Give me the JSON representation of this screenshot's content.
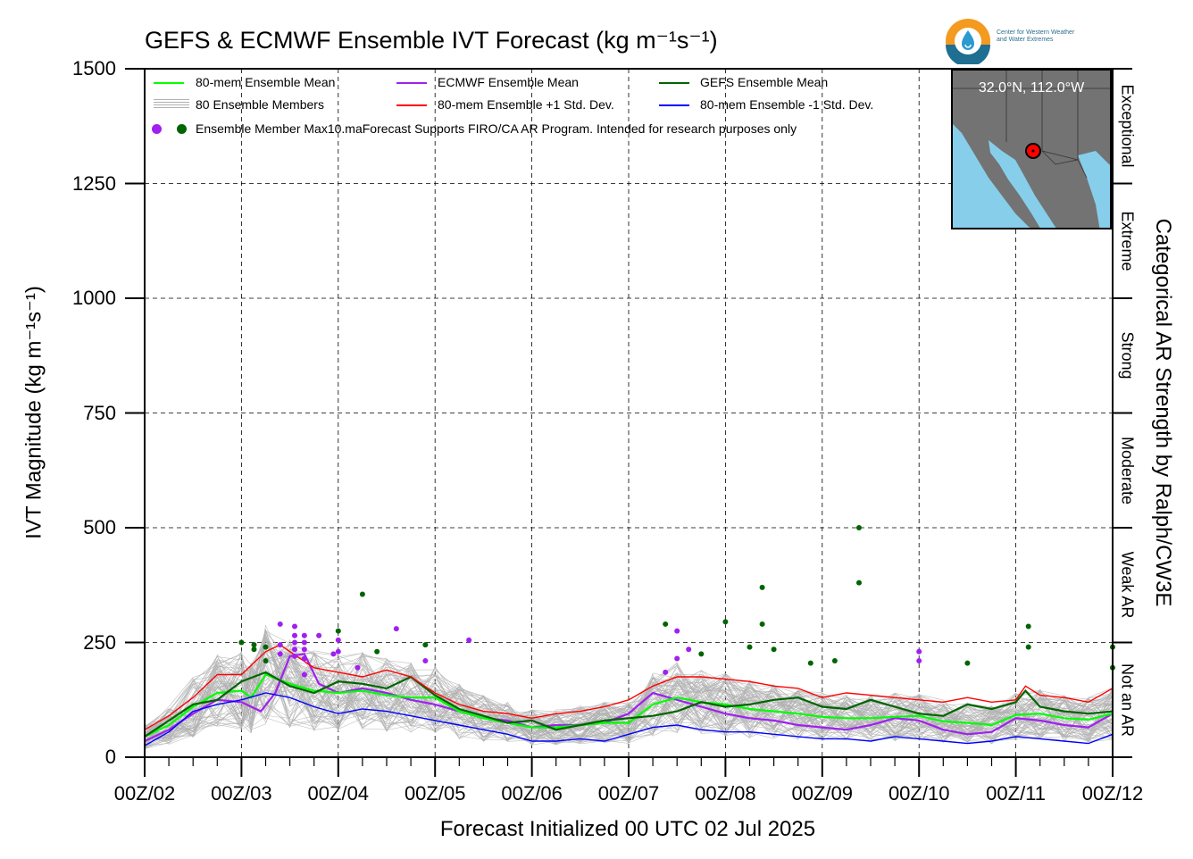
{
  "title": "GEFS & ECMWF Ensemble IVT Forecast (kg m⁻¹s⁻¹)",
  "logo": {
    "icon": "cw3e-water-drop-logo",
    "text_line1": "Center for Western Weather",
    "text_line2": "and Water Extremes"
  },
  "inset_map": {
    "location_label": "32.0°N, 112.0°W",
    "land_color": "#737373",
    "ocean_color": "#87ceeb",
    "marker_color": "#ff0000"
  },
  "legend": {
    "mean80": "80-mem Ensemble Mean",
    "ecmwf": "ECMWF Ensemble Mean",
    "gefs": "GEFS Ensemble Mean",
    "members": "80 Ensemble Members",
    "plus1": "80-mem Ensemble +1 Std. Dev.",
    "minus1": "80-mem Ensemble -1 Std. Dev.",
    "max_label": "Ensemble Member Max",
    "note": "10.maForecast Supports FIRO/CA AR Program. Intended for research purposes only"
  },
  "chart_data": {
    "type": "line",
    "title": "GEFS & ECMWF Ensemble IVT Forecast (kg m⁻¹s⁻¹)",
    "xlabel": "Forecast Initialized 00 UTC 02 Jul 2025",
    "ylabel": "IVT Magnitude (kg m⁻¹s⁻¹)",
    "right_label": "Categorical AR Strength by Ralph/CW3E",
    "ylim": [
      0,
      1500
    ],
    "yticks": [
      0,
      250,
      500,
      750,
      1000,
      1250,
      1500
    ],
    "xlim": [
      0,
      10
    ],
    "xticks": [
      "00Z/02",
      "00Z/03",
      "00Z/04",
      "00Z/05",
      "00Z/06",
      "00Z/07",
      "00Z/08",
      "00Z/09",
      "00Z/10",
      "00Z/11",
      "00Z/12"
    ],
    "grid": true,
    "legend_position": "top-left",
    "categories": [
      {
        "name": "Not an AR",
        "range": [
          0,
          250
        ]
      },
      {
        "name": "Weak AR",
        "range": [
          250,
          500
        ]
      },
      {
        "name": "Moderate",
        "range": [
          500,
          750
        ]
      },
      {
        "name": "Strong",
        "range": [
          750,
          1000
        ]
      },
      {
        "name": "Extreme",
        "range": [
          1000,
          1250
        ]
      },
      {
        "name": "Exceptional",
        "range": [
          1250,
          1500
        ]
      }
    ],
    "series": [
      {
        "name": "80-mem Ensemble Mean",
        "color": "#00ff00",
        "x": [
          0,
          0.25,
          0.5,
          0.75,
          1,
          1.1,
          1.25,
          1.5,
          1.75,
          2,
          2.25,
          2.5,
          2.75,
          3,
          3.25,
          3.5,
          3.75,
          4,
          4.25,
          4.5,
          4.75,
          5,
          5.25,
          5.5,
          5.75,
          6,
          6.25,
          6.5,
          6.75,
          7,
          7.25,
          7.5,
          7.75,
          8,
          8.25,
          8.5,
          8.75,
          9,
          9.25,
          9.5,
          9.75,
          10
        ],
        "y": [
          45,
          70,
          110,
          140,
          145,
          130,
          180,
          160,
          145,
          140,
          145,
          135,
          130,
          130,
          100,
          85,
          75,
          65,
          65,
          70,
          75,
          75,
          115,
          130,
          120,
          115,
          105,
          100,
          95,
          88,
          85,
          85,
          88,
          90,
          78,
          75,
          70,
          92,
          95,
          85,
          82,
          95
        ]
      },
      {
        "name": "ECMWF Ensemble Mean",
        "color": "#a020f0",
        "x": [
          0,
          0.25,
          0.5,
          0.75,
          1,
          1.2,
          1.35,
          1.5,
          1.65,
          1.8,
          2,
          2.25,
          2.5,
          2.75,
          3,
          3.25,
          3.5,
          3.75,
          4,
          4.25,
          4.5,
          4.75,
          5,
          5.25,
          5.5,
          5.75,
          6,
          6.25,
          6.5,
          6.75,
          7,
          7.25,
          7.5,
          7.75,
          8,
          8.25,
          8.5,
          8.75,
          9,
          9.25,
          9.5,
          9.75,
          10
        ],
        "y": [
          35,
          60,
          95,
          125,
          120,
          100,
          140,
          220,
          225,
          160,
          140,
          150,
          140,
          125,
          115,
          100,
          85,
          80,
          65,
          70,
          70,
          75,
          95,
          140,
          125,
          110,
          95,
          85,
          80,
          70,
          65,
          60,
          70,
          85,
          80,
          60,
          50,
          55,
          85,
          80,
          70,
          65,
          95
        ]
      },
      {
        "name": "GEFS Ensemble Mean",
        "color": "#006400",
        "x": [
          0,
          0.25,
          0.5,
          0.75,
          1,
          1.25,
          1.5,
          1.75,
          2,
          2.25,
          2.5,
          2.75,
          3,
          3.25,
          3.5,
          3.75,
          4,
          4.25,
          4.5,
          4.75,
          5,
          5.25,
          5.5,
          5.75,
          6,
          6.25,
          6.5,
          6.75,
          7,
          7.25,
          7.5,
          7.75,
          8,
          8.25,
          8.5,
          8.75,
          9,
          9.1,
          9.25,
          9.5,
          9.75,
          10
        ],
        "y": [
          45,
          80,
          115,
          125,
          165,
          185,
          155,
          140,
          165,
          160,
          150,
          175,
          135,
          105,
          90,
          75,
          80,
          60,
          70,
          80,
          85,
          90,
          100,
          120,
          110,
          115,
          125,
          130,
          110,
          105,
          125,
          110,
          95,
          90,
          115,
          105,
          120,
          145,
          110,
          100,
          95,
          100
        ]
      },
      {
        "name": "80-mem Ensemble +1 Std. Dev.",
        "color": "#ff0000",
        "x": [
          0,
          0.25,
          0.5,
          0.75,
          1,
          1.25,
          1.4,
          1.5,
          1.75,
          2,
          2.25,
          2.5,
          2.75,
          3,
          3.25,
          3.5,
          3.75,
          4,
          4.25,
          4.5,
          4.75,
          5,
          5.25,
          5.5,
          5.75,
          6,
          6.25,
          6.5,
          6.75,
          7,
          7.25,
          7.5,
          7.75,
          8,
          8.25,
          8.5,
          8.75,
          9,
          9.1,
          9.25,
          9.5,
          9.75,
          10
        ],
        "y": [
          60,
          90,
          130,
          180,
          180,
          230,
          245,
          230,
          195,
          185,
          175,
          190,
          175,
          140,
          115,
          100,
          95,
          85,
          95,
          100,
          110,
          125,
          155,
          175,
          175,
          170,
          165,
          155,
          150,
          130,
          140,
          135,
          130,
          125,
          120,
          130,
          120,
          125,
          155,
          135,
          130,
          120,
          150
        ]
      },
      {
        "name": "80-mem Ensemble -1 Std. Dev.",
        "color": "#0000ff",
        "x": [
          0,
          0.25,
          0.5,
          0.75,
          1,
          1.25,
          1.5,
          1.75,
          2,
          2.25,
          2.5,
          2.75,
          3,
          3.25,
          3.5,
          3.75,
          4,
          4.25,
          4.5,
          4.75,
          5,
          5.25,
          5.5,
          5.75,
          6,
          6.25,
          6.5,
          6.75,
          7,
          7.25,
          7.5,
          7.75,
          8,
          8.25,
          8.5,
          8.75,
          9,
          9.25,
          9.5,
          9.75,
          10
        ],
        "y": [
          25,
          55,
          100,
          115,
          125,
          140,
          130,
          110,
          95,
          105,
          100,
          90,
          80,
          70,
          60,
          50,
          35,
          35,
          40,
          35,
          50,
          65,
          70,
          60,
          55,
          55,
          50,
          45,
          40,
          40,
          35,
          45,
          40,
          35,
          30,
          35,
          45,
          40,
          35,
          30,
          50
        ]
      }
    ],
    "member_max": [
      {
        "model": "ECMWF",
        "color": "#a020f0",
        "points": [
          {
            "x": 1.4,
            "y": 290
          },
          {
            "x": 1.4,
            "y": 245
          },
          {
            "x": 1.4,
            "y": 225
          },
          {
            "x": 1.55,
            "y": 285
          },
          {
            "x": 1.55,
            "y": 265
          },
          {
            "x": 1.55,
            "y": 250
          },
          {
            "x": 1.55,
            "y": 235
          },
          {
            "x": 1.55,
            "y": 220
          },
          {
            "x": 1.65,
            "y": 265
          },
          {
            "x": 1.65,
            "y": 250
          },
          {
            "x": 1.65,
            "y": 235
          },
          {
            "x": 1.65,
            "y": 215
          },
          {
            "x": 1.65,
            "y": 180
          },
          {
            "x": 1.8,
            "y": 265
          },
          {
            "x": 1.95,
            "y": 225
          },
          {
            "x": 2.0,
            "y": 255
          },
          {
            "x": 2.0,
            "y": 230
          },
          {
            "x": 2.2,
            "y": 195
          },
          {
            "x": 2.6,
            "y": 280
          },
          {
            "x": 2.9,
            "y": 210
          },
          {
            "x": 3.35,
            "y": 255
          },
          {
            "x": 5.38,
            "y": 185
          },
          {
            "x": 5.5,
            "y": 275
          },
          {
            "x": 5.5,
            "y": 215
          },
          {
            "x": 5.62,
            "y": 235
          },
          {
            "x": 8.0,
            "y": 230
          },
          {
            "x": 8.0,
            "y": 210
          }
        ]
      },
      {
        "model": "GEFS",
        "color": "#006400",
        "points": [
          {
            "x": 1.0,
            "y": 250
          },
          {
            "x": 1.13,
            "y": 245
          },
          {
            "x": 1.13,
            "y": 235
          },
          {
            "x": 1.25,
            "y": 240
          },
          {
            "x": 1.25,
            "y": 210
          },
          {
            "x": 2.0,
            "y": 275
          },
          {
            "x": 2.25,
            "y": 355
          },
          {
            "x": 2.4,
            "y": 230
          },
          {
            "x": 2.9,
            "y": 245
          },
          {
            "x": 5.38,
            "y": 290
          },
          {
            "x": 5.75,
            "y": 225
          },
          {
            "x": 6.0,
            "y": 295
          },
          {
            "x": 6.38,
            "y": 370
          },
          {
            "x": 6.38,
            "y": 290
          },
          {
            "x": 6.25,
            "y": 240
          },
          {
            "x": 6.5,
            "y": 235
          },
          {
            "x": 6.88,
            "y": 205
          },
          {
            "x": 7.13,
            "y": 210
          },
          {
            "x": 7.38,
            "y": 500
          },
          {
            "x": 7.38,
            "y": 380
          },
          {
            "x": 8.5,
            "y": 205
          },
          {
            "x": 9.13,
            "y": 285
          },
          {
            "x": 9.13,
            "y": 240
          },
          {
            "x": 10.0,
            "y": 240
          },
          {
            "x": 10.0,
            "y": 195
          }
        ]
      }
    ],
    "members": {
      "name": "80 Ensemble Members",
      "color": "#b0b0b0",
      "count_shown": 80
    }
  }
}
